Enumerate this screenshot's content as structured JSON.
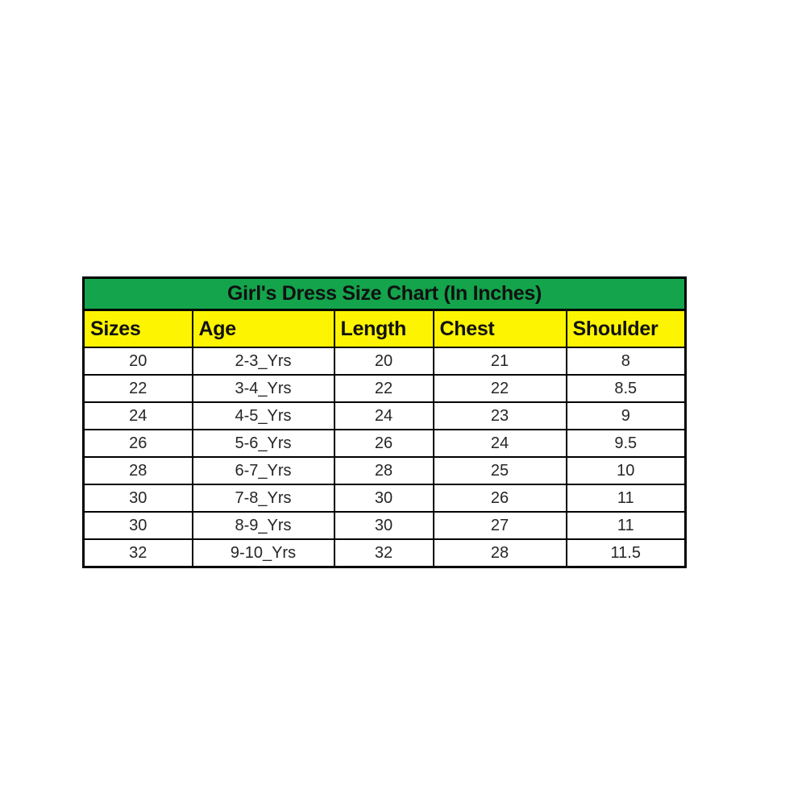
{
  "page": {
    "background_color": "#ffffff"
  },
  "table": {
    "title": "Girl's Dress Size Chart (In Inches)",
    "title_bg_color": "#14a44c",
    "header_bg_color": "#fcf400",
    "border_color": "#000000",
    "text_color": "#262626",
    "columns": [
      "Sizes",
      "Age",
      "Length",
      "Chest",
      "Shoulder"
    ],
    "rows": [
      [
        "20",
        "2-3_Yrs",
        "20",
        "21",
        "8"
      ],
      [
        "22",
        "3-4_Yrs",
        "22",
        "22",
        "8.5"
      ],
      [
        "24",
        "4-5_Yrs",
        "24",
        "23",
        "9"
      ],
      [
        "26",
        "5-6_Yrs",
        "26",
        "24",
        "9.5"
      ],
      [
        "28",
        "6-7_Yrs",
        "28",
        "25",
        "10"
      ],
      [
        "30",
        "7-8_Yrs",
        "30",
        "26",
        "11"
      ],
      [
        "30",
        "8-9_Yrs",
        "30",
        "27",
        "11"
      ],
      [
        "32",
        "9-10_Yrs",
        "32",
        "28",
        "11.5"
      ]
    ]
  },
  "chart_data": {
    "type": "table",
    "title": "Girl's Dress Size Chart (In Inches)",
    "columns": [
      "Sizes",
      "Age",
      "Length",
      "Chest",
      "Shoulder"
    ],
    "rows": [
      [
        "20",
        "2-3_Yrs",
        "20",
        "21",
        "8"
      ],
      [
        "22",
        "3-4_Yrs",
        "22",
        "22",
        "8.5"
      ],
      [
        "24",
        "4-5_Yrs",
        "24",
        "23",
        "9"
      ],
      [
        "26",
        "5-6_Yrs",
        "26",
        "24",
        "9.5"
      ],
      [
        "28",
        "6-7_Yrs",
        "28",
        "25",
        "10"
      ],
      [
        "30",
        "7-8_Yrs",
        "30",
        "26",
        "11"
      ],
      [
        "30",
        "8-9_Yrs",
        "30",
        "27",
        "11"
      ],
      [
        "32",
        "9-10_Yrs",
        "32",
        "28",
        "11.5"
      ]
    ],
    "units": "inches",
    "layout": {
      "title_background": "#14a44c",
      "header_background": "#fcf400",
      "grid": true
    }
  }
}
